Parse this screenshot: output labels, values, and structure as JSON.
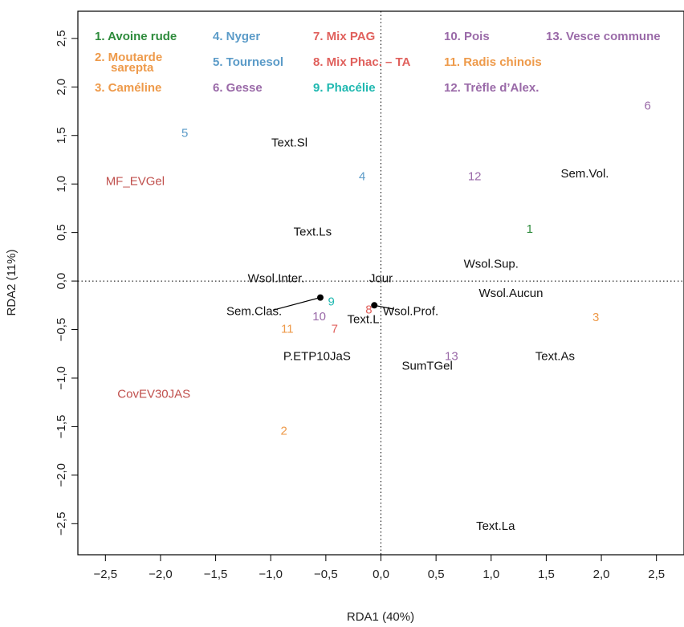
{
  "chart_data": {
    "type": "scatter",
    "xlabel": "RDA1 (40%)",
    "ylabel": "RDA2 (11%)",
    "xlim": [
      -2.75,
      2.75
    ],
    "ylim": [
      -2.82,
      2.78
    ],
    "xticks": [
      {
        "v": -2.5,
        "label": "−2,5"
      },
      {
        "v": -2.0,
        "label": "−2,0"
      },
      {
        "v": -1.5,
        "label": "−1,5"
      },
      {
        "v": -1.0,
        "label": "−1,0"
      },
      {
        "v": -0.5,
        "label": "−0,5"
      },
      {
        "v": 0.0,
        "label": "0,0"
      },
      {
        "v": 0.5,
        "label": "0,5"
      },
      {
        "v": 1.0,
        "label": "1,0"
      },
      {
        "v": 1.5,
        "label": "1,5"
      },
      {
        "v": 2.0,
        "label": "2,0"
      },
      {
        "v": 2.5,
        "label": "2,5"
      }
    ],
    "yticks": [
      {
        "v": -2.5,
        "label": "−2,5"
      },
      {
        "v": -2.0,
        "label": "−2,0"
      },
      {
        "v": -1.5,
        "label": "−1,5"
      },
      {
        "v": -1.0,
        "label": "−1,0"
      },
      {
        "v": -0.5,
        "label": "−0,5"
      },
      {
        "v": 0.0,
        "label": "0,0"
      },
      {
        "v": 0.5,
        "label": "0,5"
      },
      {
        "v": 1.0,
        "label": "1,0"
      },
      {
        "v": 1.5,
        "label": "1,5"
      },
      {
        "v": 2.0,
        "label": "2,0"
      },
      {
        "v": 2.5,
        "label": "2,5"
      }
    ],
    "zero_lines": true,
    "grid": false,
    "legend_position": "top",
    "legend": [
      {
        "label": "1. Avoine rude",
        "color": "#2e8b3c"
      },
      {
        "label": "2. Moutarde\nsarepta",
        "color": "#ee9a4a"
      },
      {
        "label": "3. Caméline",
        "color": "#ee9a4a"
      },
      {
        "label": "4. Nyger",
        "color": "#5b9bc8"
      },
      {
        "label": "5. Tournesol",
        "color": "#5b9bc8"
      },
      {
        "label": "6. Gesse",
        "color": "#9a6aa8"
      },
      {
        "label": "7. Mix PAG",
        "color": "#e0605c"
      },
      {
        "label": "8. Mix Phac. – TA",
        "color": "#e0605c"
      },
      {
        "label": "9. Phacélie",
        "color": "#1fb8b0"
      },
      {
        "label": "10. Pois",
        "color": "#9a6aa8"
      },
      {
        "label": "11. Radis chinois",
        "color": "#ee9a4a"
      },
      {
        "label": "12. Trèfle d’Alex.",
        "color": "#9a6aa8"
      },
      {
        "label": "13. Vesce commune",
        "color": "#9a6aa8"
      }
    ],
    "sites": [
      {
        "label": "1",
        "x": 1.35,
        "y": 0.53,
        "color": "#2e8b3c"
      },
      {
        "label": "2",
        "x": -0.88,
        "y": -1.55,
        "color": "#ee9a4a"
      },
      {
        "label": "3",
        "x": 1.95,
        "y": -0.38,
        "color": "#ee9a4a"
      },
      {
        "label": "4",
        "x": -0.17,
        "y": 1.07,
        "color": "#5b9bc8"
      },
      {
        "label": "5",
        "x": -1.78,
        "y": 1.52,
        "color": "#5b9bc8"
      },
      {
        "label": "6",
        "x": 2.42,
        "y": 1.8,
        "color": "#9a6aa8"
      },
      {
        "label": "7",
        "x": -0.42,
        "y": -0.5,
        "color": "#e0605c"
      },
      {
        "label": "8",
        "x": -0.11,
        "y": -0.3,
        "color": "#e0605c"
      },
      {
        "label": "9",
        "x": -0.45,
        "y": -0.22,
        "color": "#1fb8b0"
      },
      {
        "label": "10",
        "x": -0.56,
        "y": -0.37,
        "color": "#9a6aa8"
      },
      {
        "label": "11",
        "x": -0.85,
        "y": -0.5,
        "color": "#ee9a4a"
      },
      {
        "label": "12",
        "x": 0.85,
        "y": 1.07,
        "color": "#9a6aa8"
      },
      {
        "label": "13",
        "x": 0.64,
        "y": -0.78,
        "color": "#9a6aa8"
      }
    ],
    "variables": [
      {
        "label": "Text.Sl",
        "x": -0.83,
        "y": 1.42,
        "color": "#111111"
      },
      {
        "label": "Text.Ls",
        "x": -0.62,
        "y": 0.5,
        "color": "#111111"
      },
      {
        "label": "Sem.Vol.",
        "x": 1.85,
        "y": 1.1,
        "color": "#111111"
      },
      {
        "label": "Wsol.Sup.",
        "x": 1.0,
        "y": 0.17,
        "color": "#111111"
      },
      {
        "label": "Wsol.Inter.",
        "x": -0.95,
        "y": 0.02,
        "color": "#111111"
      },
      {
        "label": "Jour",
        "x": 0.0,
        "y": 0.02,
        "color": "#111111"
      },
      {
        "label": "Wsol.Aucun",
        "x": 1.18,
        "y": -0.13,
        "color": "#111111"
      },
      {
        "label": "Sem.Clas.",
        "x": -1.15,
        "y": -0.32,
        "color": "#111111"
      },
      {
        "label": "Wsol.Prof.",
        "x": 0.27,
        "y": -0.32,
        "color": "#111111"
      },
      {
        "label": "Text.L",
        "x": -0.16,
        "y": -0.4,
        "color": "#111111"
      },
      {
        "label": "P.ETP10JaS",
        "x": -0.58,
        "y": -0.78,
        "color": "#111111"
      },
      {
        "label": "Text.As",
        "x": 1.58,
        "y": -0.78,
        "color": "#111111"
      },
      {
        "label": "SumTGel",
        "x": 0.42,
        "y": -0.88,
        "color": "#111111"
      },
      {
        "label": "Text.La",
        "x": 1.04,
        "y": -2.53,
        "color": "#111111"
      },
      {
        "label": "MF_EVGel",
        "x": -2.23,
        "y": 1.02,
        "color": "#c0504d"
      },
      {
        "label": "CovEV30JAS",
        "x": -2.06,
        "y": -1.17,
        "color": "#c0504d"
      }
    ],
    "arrows": [
      {
        "from": [
          -0.55,
          -0.17
        ],
        "to": [
          -0.98,
          -0.3
        ]
      },
      {
        "from": [
          -0.06,
          -0.25
        ],
        "to": [
          0.12,
          -0.29
        ]
      }
    ],
    "points": [
      {
        "x": -0.55,
        "y": -0.17
      },
      {
        "x": -0.06,
        "y": -0.25
      }
    ]
  }
}
